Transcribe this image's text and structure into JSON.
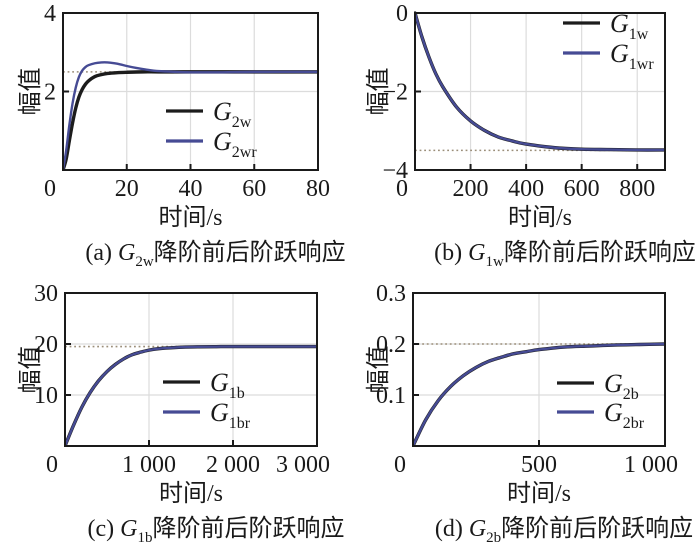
{
  "figure": {
    "background": "#ffffff",
    "colors": {
      "curve_original": "#1c1c1c",
      "curve_reduced": "#464b94",
      "reference_line": "#9b8e79",
      "grid": "#dcdcdc",
      "axis": "#1a1a1a",
      "text": "#1a1a1a"
    }
  },
  "chart_data": [
    {
      "panel": "a",
      "type": "line",
      "caption": {
        "prefix": "(a) ",
        "symbol": "G",
        "subscript": "2w",
        "text": "降阶前后阶跃响应"
      },
      "xlabel": "时间/s",
      "ylabel": "幅值",
      "xlim": [
        0,
        80
      ],
      "ylim": [
        0,
        4
      ],
      "xticks": [
        {
          "v": 0,
          "label": "0"
        },
        {
          "v": 20,
          "label": "20"
        },
        {
          "v": 40,
          "label": "40"
        },
        {
          "v": 60,
          "label": "60"
        },
        {
          "v": 80,
          "label": "80"
        }
      ],
      "yticks": [
        {
          "v": 2,
          "label": "2"
        },
        {
          "v": 4,
          "label": "4"
        }
      ],
      "grid_x": [
        20,
        40,
        60
      ],
      "grid_y": [
        2
      ],
      "reference_y": 2.5,
      "steady_state": 2.5,
      "legend": {
        "entries": [
          {
            "symbol": "G",
            "subscript": "2w",
            "color_key": "curve_original"
          },
          {
            "symbol": "G",
            "subscript": "2wr",
            "color_key": "curve_reduced"
          }
        ]
      },
      "series": [
        {
          "name": "G2w",
          "color_key": "curve_original",
          "points": [
            [
              0,
              0
            ],
            [
              1,
              0.28
            ],
            [
              2,
              0.75
            ],
            [
              3,
              1.2
            ],
            [
              4,
              1.58
            ],
            [
              5,
              1.86
            ],
            [
              6,
              2.05
            ],
            [
              7,
              2.18
            ],
            [
              8,
              2.27
            ],
            [
              10,
              2.38
            ],
            [
              12,
              2.43
            ],
            [
              14,
              2.46
            ],
            [
              17,
              2.48
            ],
            [
              20,
              2.49
            ],
            [
              25,
              2.5
            ],
            [
              30,
              2.5
            ],
            [
              40,
              2.5
            ],
            [
              60,
              2.5
            ],
            [
              80,
              2.5
            ]
          ]
        },
        {
          "name": "G2wr",
          "color_key": "curve_reduced",
          "points": [
            [
              0,
              0
            ],
            [
              1,
              0.5
            ],
            [
              2,
              1.15
            ],
            [
              3,
              1.7
            ],
            [
              4,
              2.1
            ],
            [
              5,
              2.37
            ],
            [
              6,
              2.53
            ],
            [
              7,
              2.62
            ],
            [
              8,
              2.67
            ],
            [
              10,
              2.72
            ],
            [
              12,
              2.74
            ],
            [
              14,
              2.74
            ],
            [
              16,
              2.72
            ],
            [
              18,
              2.69
            ],
            [
              20,
              2.65
            ],
            [
              23,
              2.6
            ],
            [
              26,
              2.56
            ],
            [
              30,
              2.52
            ],
            [
              35,
              2.5
            ],
            [
              40,
              2.49
            ],
            [
              50,
              2.49
            ],
            [
              60,
              2.5
            ],
            [
              80,
              2.5
            ]
          ]
        }
      ]
    },
    {
      "panel": "b",
      "type": "line",
      "caption": {
        "prefix": "(b) ",
        "symbol": "G",
        "subscript": "1w",
        "text": "降阶前后阶跃响应"
      },
      "xlabel": "时间/s",
      "ylabel": "幅值",
      "xlim": [
        0,
        900
      ],
      "ylim": [
        -4,
        0
      ],
      "xticks": [
        {
          "v": 0,
          "label": "0"
        },
        {
          "v": 200,
          "label": "200"
        },
        {
          "v": 400,
          "label": "400"
        },
        {
          "v": 600,
          "label": "600"
        },
        {
          "v": 800,
          "label": "800"
        }
      ],
      "yticks": [
        {
          "v": 0,
          "label": "0"
        },
        {
          "v": -2,
          "label": "−2"
        },
        {
          "v": -4,
          "label": "−4"
        }
      ],
      "grid_x": [
        200,
        400,
        600,
        800
      ],
      "grid_y": [
        -2
      ],
      "reference_y": -3.5,
      "steady_state": -3.5,
      "legend": {
        "entries": [
          {
            "symbol": "G",
            "subscript": "1w",
            "color_key": "curve_original"
          },
          {
            "symbol": "G",
            "subscript": "1wr",
            "color_key": "curve_reduced"
          }
        ]
      },
      "series": [
        {
          "name": "G1w",
          "color_key": "curve_original",
          "points": [
            [
              0,
              0
            ],
            [
              25,
              -0.61
            ],
            [
              50,
              -1.12
            ],
            [
              75,
              -1.55
            ],
            [
              100,
              -1.88
            ],
            [
              150,
              -2.4
            ],
            [
              200,
              -2.75
            ],
            [
              250,
              -2.99
            ],
            [
              300,
              -3.16
            ],
            [
              350,
              -3.26
            ],
            [
              400,
              -3.34
            ],
            [
              500,
              -3.43
            ],
            [
              600,
              -3.47
            ],
            [
              700,
              -3.48
            ],
            [
              800,
              -3.49
            ],
            [
              900,
              -3.49
            ]
          ]
        },
        {
          "name": "G1wr",
          "color_key": "curve_reduced",
          "points": [
            [
              0,
              0
            ],
            [
              25,
              -0.61
            ],
            [
              50,
              -1.12
            ],
            [
              75,
              -1.55
            ],
            [
              100,
              -1.88
            ],
            [
              150,
              -2.4
            ],
            [
              200,
              -2.75
            ],
            [
              250,
              -2.99
            ],
            [
              300,
              -3.16
            ],
            [
              350,
              -3.26
            ],
            [
              400,
              -3.34
            ],
            [
              500,
              -3.43
            ],
            [
              600,
              -3.47
            ],
            [
              700,
              -3.48
            ],
            [
              800,
              -3.49
            ],
            [
              900,
              -3.49
            ]
          ]
        }
      ]
    },
    {
      "panel": "c",
      "type": "line",
      "caption": {
        "prefix": "(c) ",
        "symbol": "G",
        "subscript": "1b",
        "text": "降阶前后阶跃响应"
      },
      "xlabel": "时间/s",
      "ylabel": "幅值",
      "xlim": [
        0,
        3000
      ],
      "ylim": [
        0,
        30
      ],
      "xticks": [
        {
          "v": 0,
          "label": "0"
        },
        {
          "v": 1000,
          "label": "1 000"
        },
        {
          "v": 2000,
          "label": "2 000"
        },
        {
          "v": 3000,
          "label": "3 000"
        }
      ],
      "yticks": [
        {
          "v": 10,
          "label": "10"
        },
        {
          "v": 20,
          "label": "20"
        },
        {
          "v": 30,
          "label": "30"
        }
      ],
      "grid_x": [
        1000,
        2000
      ],
      "grid_y": [
        10,
        20
      ],
      "reference_y": 19.5,
      "steady_state": 19.5,
      "legend": {
        "entries": [
          {
            "symbol": "G",
            "subscript": "1b",
            "color_key": "curve_original"
          },
          {
            "symbol": "G",
            "subscript": "1br",
            "color_key": "curve_reduced"
          }
        ]
      },
      "series": [
        {
          "name": "G1b",
          "color_key": "curve_original",
          "points": [
            [
              0,
              0
            ],
            [
              100,
              4.0
            ],
            [
              200,
              7.6
            ],
            [
              300,
              10.5
            ],
            [
              400,
              12.8
            ],
            [
              500,
              14.6
            ],
            [
              600,
              16.0
            ],
            [
              700,
              17.1
            ],
            [
              800,
              17.9
            ],
            [
              900,
              18.4
            ],
            [
              1000,
              18.8
            ],
            [
              1100,
              19.05
            ],
            [
              1200,
              19.2
            ],
            [
              1400,
              19.38
            ],
            [
              1600,
              19.45
            ],
            [
              1800,
              19.48
            ],
            [
              2000,
              19.5
            ],
            [
              2500,
              19.5
            ],
            [
              3000,
              19.5
            ]
          ]
        },
        {
          "name": "G1br",
          "color_key": "curve_reduced",
          "points": [
            [
              0,
              0
            ],
            [
              100,
              4.0
            ],
            [
              200,
              7.6
            ],
            [
              300,
              10.5
            ],
            [
              400,
              12.8
            ],
            [
              500,
              14.6
            ],
            [
              600,
              16.0
            ],
            [
              700,
              17.1
            ],
            [
              800,
              17.9
            ],
            [
              900,
              18.4
            ],
            [
              1000,
              18.8
            ],
            [
              1100,
              19.05
            ],
            [
              1200,
              19.2
            ],
            [
              1400,
              19.38
            ],
            [
              1600,
              19.45
            ],
            [
              1800,
              19.48
            ],
            [
              2000,
              19.5
            ],
            [
              2500,
              19.5
            ],
            [
              3000,
              19.5
            ]
          ]
        }
      ]
    },
    {
      "panel": "d",
      "type": "line",
      "caption": {
        "prefix": "(d) ",
        "symbol": "G",
        "subscript": "2b",
        "text": "降阶前后阶跃响应"
      },
      "xlabel": "时间/s",
      "ylabel": "幅值",
      "xlim": [
        0,
        1000
      ],
      "ylim": [
        0,
        0.3
      ],
      "xticks": [
        {
          "v": 0,
          "label": "0"
        },
        {
          "v": 500,
          "label": "500"
        },
        {
          "v": 1000,
          "label": "1 000"
        }
      ],
      "yticks": [
        {
          "v": 0.1,
          "label": "0.1"
        },
        {
          "v": 0.2,
          "label": "0.2"
        },
        {
          "v": 0.3,
          "label": "0.3"
        }
      ],
      "grid_x": [
        500
      ],
      "grid_y": [
        0.1,
        0.2
      ],
      "reference_y": 0.2,
      "steady_state": 0.2,
      "legend": {
        "entries": [
          {
            "symbol": "G",
            "subscript": "2b",
            "color_key": "curve_original"
          },
          {
            "symbol": "G",
            "subscript": "2br",
            "color_key": "curve_reduced"
          }
        ]
      },
      "series": [
        {
          "name": "G2b",
          "color_key": "curve_original",
          "points": [
            [
              0,
              0
            ],
            [
              50,
              0.051
            ],
            [
              100,
              0.089
            ],
            [
              150,
              0.117
            ],
            [
              200,
              0.138
            ],
            [
              250,
              0.154
            ],
            [
              300,
              0.166
            ],
            [
              350,
              0.174
            ],
            [
              400,
              0.181
            ],
            [
              450,
              0.185
            ],
            [
              500,
              0.189
            ],
            [
              600,
              0.194
            ],
            [
              700,
              0.196
            ],
            [
              800,
              0.198
            ],
            [
              900,
              0.199
            ],
            [
              1000,
              0.2
            ]
          ]
        },
        {
          "name": "G2br",
          "color_key": "curve_reduced",
          "points": [
            [
              0,
              0
            ],
            [
              50,
              0.051
            ],
            [
              100,
              0.089
            ],
            [
              150,
              0.117
            ],
            [
              200,
              0.138
            ],
            [
              250,
              0.154
            ],
            [
              300,
              0.166
            ],
            [
              350,
              0.174
            ],
            [
              400,
              0.181
            ],
            [
              450,
              0.185
            ],
            [
              500,
              0.189
            ],
            [
              600,
              0.194
            ],
            [
              700,
              0.196
            ],
            [
              800,
              0.198
            ],
            [
              900,
              0.199
            ],
            [
              1000,
              0.2
            ]
          ]
        }
      ]
    }
  ]
}
